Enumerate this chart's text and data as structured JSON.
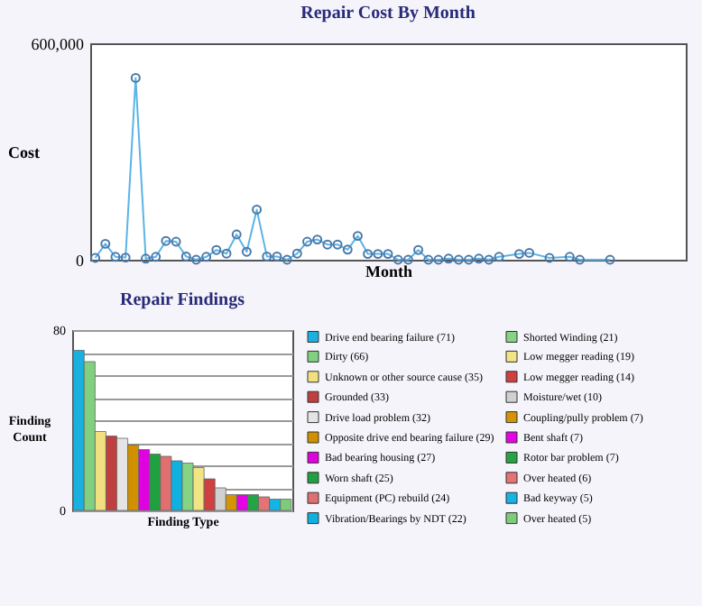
{
  "chart_data": [
    {
      "type": "line",
      "title": "Repair Cost By Month",
      "xlabel": "Month",
      "ylabel": "Cost",
      "tick_labels": "y",
      "marker": "circle",
      "categories": [
        null,
        null,
        null,
        null,
        null,
        null,
        null,
        null,
        null,
        null,
        null,
        null,
        null,
        null,
        null,
        null,
        null,
        null,
        null,
        null,
        null,
        null,
        null,
        null,
        null,
        null,
        null,
        null,
        null,
        null,
        null,
        null,
        null,
        null,
        null,
        null,
        null,
        null,
        null,
        null,
        null,
        null,
        null,
        null,
        null,
        null,
        null,
        null,
        null,
        null,
        null,
        null,
        null,
        null,
        null,
        null,
        null,
        null,
        null
      ],
      "series": [
        {
          "color": "#5ab4e6",
          "values": [
            5000,
            44000,
            8000,
            6000,
            504000,
            3000,
            8000,
            52000,
            50000,
            9000,
            0,
            8000,
            27000,
            17000,
            70000,
            22000,
            139000,
            9000,
            9000,
            0,
            17000,
            50000,
            56000,
            42000,
            42000,
            28000,
            66000,
            16000,
            16000,
            16000,
            0,
            0,
            27000,
            0,
            0,
            3000,
            0,
            0,
            3000,
            0,
            8000,
            null,
            16000,
            19000,
            null,
            5000,
            null,
            8000,
            0,
            null,
            null,
            0,
            null,
            null,
            null,
            null,
            null,
            null,
            null
          ]
        }
      ],
      "ylim": [
        0,
        600000
      ],
      "yticks": [
        {
          "value": 0,
          "label": "0"
        },
        {
          "value": 600000,
          "label": "600,000"
        }
      ]
    },
    {
      "type": "bar",
      "title": "Repair Findings",
      "xlabel": "Finding Type",
      "ylabel": "Finding Count",
      "tick_labels": "y",
      "grid": "y",
      "legend": "right",
      "categories": [
        null,
        null,
        null,
        null,
        null,
        null,
        null,
        null,
        null,
        null,
        null,
        null,
        null,
        null,
        null,
        null,
        null,
        null,
        null,
        null
      ],
      "series": [
        {
          "name": "Drive end bearing failure (71)",
          "color": "#1ab0e0",
          "values": [
            71,
            null,
            null,
            null,
            null,
            null,
            null,
            null,
            null,
            null,
            null,
            null,
            null,
            null,
            null,
            null,
            null,
            null,
            null,
            null
          ]
        },
        {
          "name": "Dirty (66)",
          "color": "#80d080",
          "values": [
            null,
            66,
            null,
            null,
            null,
            null,
            null,
            null,
            null,
            null,
            null,
            null,
            null,
            null,
            null,
            null,
            null,
            null,
            null,
            null
          ]
        },
        {
          "name": "Unknown or other source cause (35)",
          "color": "#f0e080",
          "values": [
            null,
            null,
            35,
            null,
            null,
            null,
            null,
            null,
            null,
            null,
            null,
            null,
            null,
            null,
            null,
            null,
            null,
            null,
            null,
            null
          ]
        },
        {
          "name": "Grounded (33)",
          "color": "#c04040",
          "values": [
            null,
            null,
            null,
            33,
            null,
            null,
            null,
            null,
            null,
            null,
            null,
            null,
            null,
            null,
            null,
            null,
            null,
            null,
            null,
            null
          ]
        },
        {
          "name": "Drive load problem (32)",
          "color": "#e4e4e4",
          "values": [
            null,
            null,
            null,
            null,
            32,
            null,
            null,
            null,
            null,
            null,
            null,
            null,
            null,
            null,
            null,
            null,
            null,
            null,
            null,
            null
          ]
        },
        {
          "name": "Opposite drive end bearing failure (29)",
          "color": "#d09000",
          "values": [
            null,
            null,
            null,
            null,
            null,
            29,
            null,
            null,
            null,
            null,
            null,
            null,
            null,
            null,
            null,
            null,
            null,
            null,
            null,
            null
          ]
        },
        {
          "name": "Bad bearing housing (27)",
          "color": "#e000e0",
          "values": [
            null,
            null,
            null,
            null,
            null,
            null,
            27,
            null,
            null,
            null,
            null,
            null,
            null,
            null,
            null,
            null,
            null,
            null,
            null,
            null
          ]
        },
        {
          "name": "Worn shaft (25)",
          "color": "#20a040",
          "values": [
            null,
            null,
            null,
            null,
            null,
            null,
            null,
            25,
            null,
            null,
            null,
            null,
            null,
            null,
            null,
            null,
            null,
            null,
            null,
            null
          ]
        },
        {
          "name": "Equipment (PC) rebuild (24)",
          "color": "#e07070",
          "values": [
            null,
            null,
            null,
            null,
            null,
            null,
            null,
            null,
            24,
            null,
            null,
            null,
            null,
            null,
            null,
            null,
            null,
            null,
            null,
            null
          ]
        },
        {
          "name": "Vibration/Bearings by NDT (22)",
          "color": "#10b0e0",
          "values": [
            null,
            null,
            null,
            null,
            null,
            null,
            null,
            null,
            null,
            22,
            null,
            null,
            null,
            null,
            null,
            null,
            null,
            null,
            null,
            null
          ]
        },
        {
          "name": "Shorted Winding (21)",
          "color": "#84d484",
          "values": [
            null,
            null,
            null,
            null,
            null,
            null,
            null,
            null,
            null,
            null,
            21,
            null,
            null,
            null,
            null,
            null,
            null,
            null,
            null,
            null
          ]
        },
        {
          "name": "Low megger reading (19)",
          "color": "#f0e484",
          "values": [
            null,
            null,
            null,
            null,
            null,
            null,
            null,
            null,
            null,
            null,
            null,
            19,
            null,
            null,
            null,
            null,
            null,
            null,
            null,
            null
          ]
        },
        {
          "name": "Low megger reading (14)",
          "color": "#d04040",
          "values": [
            null,
            null,
            null,
            null,
            null,
            null,
            null,
            null,
            null,
            null,
            null,
            null,
            14,
            null,
            null,
            null,
            null,
            null,
            null,
            null
          ]
        },
        {
          "name": "Moisture/wet (10)",
          "color": "#d0d0d0",
          "values": [
            null,
            null,
            null,
            null,
            null,
            null,
            null,
            null,
            null,
            null,
            null,
            null,
            null,
            10,
            null,
            null,
            null,
            null,
            null,
            null
          ]
        },
        {
          "name": "Coupling/pully problem (7)",
          "color": "#d49404",
          "values": [
            null,
            null,
            null,
            null,
            null,
            null,
            null,
            null,
            null,
            null,
            null,
            null,
            null,
            null,
            7,
            null,
            null,
            null,
            null,
            null
          ]
        },
        {
          "name": "Bent shaft (7)",
          "color": "#e404e4",
          "values": [
            null,
            null,
            null,
            null,
            null,
            null,
            null,
            null,
            null,
            null,
            null,
            null,
            null,
            null,
            null,
            7,
            null,
            null,
            null,
            null
          ]
        },
        {
          "name": "Rotor bar problem (7)",
          "color": "#24a444",
          "values": [
            null,
            null,
            null,
            null,
            null,
            null,
            null,
            null,
            null,
            null,
            null,
            null,
            null,
            null,
            null,
            null,
            7,
            null,
            null,
            null
          ]
        },
        {
          "name": "Over heated (6)",
          "color": "#e47474",
          "values": [
            null,
            null,
            null,
            null,
            null,
            null,
            null,
            null,
            null,
            null,
            null,
            null,
            null,
            null,
            null,
            null,
            null,
            6,
            null,
            null
          ]
        },
        {
          "name": "Bad keyway (5)",
          "color": "#14b4e4",
          "values": [
            null,
            null,
            null,
            null,
            null,
            null,
            null,
            null,
            null,
            null,
            null,
            null,
            null,
            null,
            null,
            null,
            null,
            null,
            5,
            null
          ]
        },
        {
          "name": "Over heated (5)",
          "color": "#7ccc7c",
          "values": [
            null,
            null,
            null,
            null,
            null,
            null,
            null,
            null,
            null,
            null,
            null,
            null,
            null,
            null,
            null,
            null,
            null,
            null,
            null,
            5
          ]
        }
      ],
      "ylim": [
        0,
        80
      ],
      "yticks": [
        0,
        {
          "value": 10,
          "label": null
        },
        {
          "value": 20,
          "label": null
        },
        {
          "value": 30,
          "label": null
        },
        {
          "value": 40,
          "label": null
        },
        {
          "value": 50,
          "label": null
        },
        {
          "value": 60,
          "label": null
        },
        {
          "value": 70,
          "label": null
        },
        80
      ]
    }
  ]
}
